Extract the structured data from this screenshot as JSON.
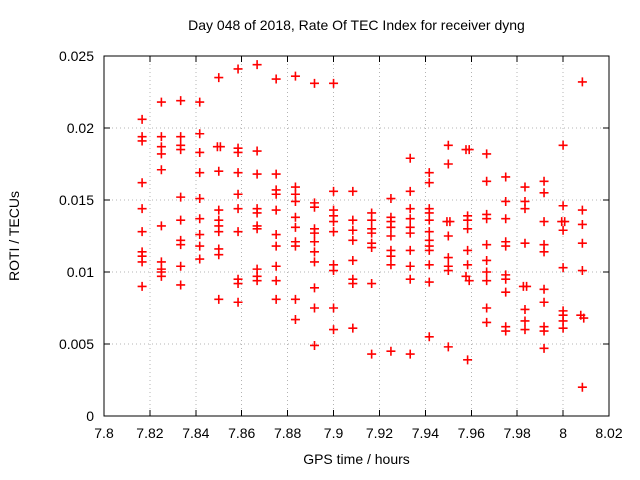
{
  "chart_data": {
    "type": "scatter",
    "title": "Day 048 of 2018, Rate Of TEC Index for receiver dyng",
    "xlabel": "GPS time / hours",
    "ylabel": "ROTI / TECUs",
    "xlim": [
      7.8,
      8.02
    ],
    "ylim": [
      0,
      0.025
    ],
    "x_ticks": [
      7.8,
      7.82,
      7.84,
      7.86,
      7.88,
      7.9,
      7.92,
      7.94,
      7.96,
      7.98,
      8,
      8.02
    ],
    "x_tick_labels": [
      "7.8",
      "7.82",
      "7.84",
      "7.86",
      "7.88",
      "7.9",
      "7.92",
      "7.94",
      "7.96",
      "7.98",
      "8",
      "8.02"
    ],
    "y_ticks": [
      0,
      0.005,
      0.01,
      0.015,
      0.02,
      0.025
    ],
    "y_tick_labels": [
      "0",
      "0.005",
      "0.01",
      "0.015",
      "0.02",
      "0.025"
    ],
    "grid": true,
    "legend": "none",
    "marker": "plus",
    "marker_color": "#ff0000",
    "grid_color": "#b4b4b4",
    "border_color": "#000000",
    "series": [
      {
        "name": "ROTI",
        "points": [
          [
            7.8166,
            0.0206
          ],
          [
            7.8166,
            0.0194
          ],
          [
            7.8166,
            0.0191
          ],
          [
            7.8166,
            0.0162
          ],
          [
            7.8166,
            0.0144
          ],
          [
            7.8166,
            0.0128
          ],
          [
            7.8166,
            0.0114
          ],
          [
            7.8166,
            0.0111
          ],
          [
            7.8166,
            0.0107
          ],
          [
            7.8166,
            0.009
          ],
          [
            7.825,
            0.0218
          ],
          [
            7.825,
            0.0194
          ],
          [
            7.825,
            0.0187
          ],
          [
            7.825,
            0.0182
          ],
          [
            7.825,
            0.0171
          ],
          [
            7.825,
            0.0132
          ],
          [
            7.825,
            0.0107
          ],
          [
            7.825,
            0.0102
          ],
          [
            7.825,
            0.01
          ],
          [
            7.825,
            0.0097
          ],
          [
            7.8334,
            0.0219
          ],
          [
            7.8334,
            0.0194
          ],
          [
            7.8334,
            0.0188
          ],
          [
            7.8334,
            0.0185
          ],
          [
            7.8334,
            0.0152
          ],
          [
            7.8334,
            0.0136
          ],
          [
            7.8334,
            0.0122
          ],
          [
            7.8334,
            0.0119
          ],
          [
            7.8334,
            0.0104
          ],
          [
            7.8334,
            0.0091
          ],
          [
            7.8417,
            0.0218
          ],
          [
            7.8417,
            0.0196
          ],
          [
            7.8417,
            0.0183
          ],
          [
            7.8417,
            0.0169
          ],
          [
            7.8417,
            0.0151
          ],
          [
            7.8417,
            0.0137
          ],
          [
            7.8417,
            0.0126
          ],
          [
            7.8417,
            0.0118
          ],
          [
            7.8417,
            0.0109
          ],
          [
            7.85,
            0.0235
          ],
          [
            7.8494,
            0.0187
          ],
          [
            7.8507,
            0.0187
          ],
          [
            7.85,
            0.017
          ],
          [
            7.85,
            0.0143
          ],
          [
            7.85,
            0.0136
          ],
          [
            7.85,
            0.0132
          ],
          [
            7.85,
            0.0128
          ],
          [
            7.85,
            0.0116
          ],
          [
            7.85,
            0.0112
          ],
          [
            7.85,
            0.0081
          ],
          [
            7.8584,
            0.0241
          ],
          [
            7.8584,
            0.0186
          ],
          [
            7.8584,
            0.0183
          ],
          [
            7.8584,
            0.0169
          ],
          [
            7.8584,
            0.0154
          ],
          [
            7.8584,
            0.0144
          ],
          [
            7.8584,
            0.0128
          ],
          [
            7.8584,
            0.0095
          ],
          [
            7.8584,
            0.0092
          ],
          [
            7.8584,
            0.0079
          ],
          [
            7.8667,
            0.0244
          ],
          [
            7.8667,
            0.0184
          ],
          [
            7.8667,
            0.0168
          ],
          [
            7.8667,
            0.0144
          ],
          [
            7.8667,
            0.0141
          ],
          [
            7.8667,
            0.0132
          ],
          [
            7.8667,
            0.013
          ],
          [
            7.8667,
            0.0102
          ],
          [
            7.8667,
            0.0097
          ],
          [
            7.8667,
            0.0094
          ],
          [
            7.875,
            0.0234
          ],
          [
            7.875,
            0.0168
          ],
          [
            7.875,
            0.0157
          ],
          [
            7.875,
            0.0154
          ],
          [
            7.875,
            0.0143
          ],
          [
            7.875,
            0.0126
          ],
          [
            7.875,
            0.0118
          ],
          [
            7.875,
            0.0104
          ],
          [
            7.875,
            0.0094
          ],
          [
            7.875,
            0.0081
          ],
          [
            7.8834,
            0.0236
          ],
          [
            7.8834,
            0.0159
          ],
          [
            7.8834,
            0.0154
          ],
          [
            7.8834,
            0.0149
          ],
          [
            7.8834,
            0.0138
          ],
          [
            7.8834,
            0.0131
          ],
          [
            7.8834,
            0.0121
          ],
          [
            7.8834,
            0.0118
          ],
          [
            7.8834,
            0.0081
          ],
          [
            7.8834,
            0.0067
          ],
          [
            7.8917,
            0.0231
          ],
          [
            7.8917,
            0.0148
          ],
          [
            7.8917,
            0.0145
          ],
          [
            7.8917,
            0.013
          ],
          [
            7.8917,
            0.0127
          ],
          [
            7.8917,
            0.0121
          ],
          [
            7.8917,
            0.0114
          ],
          [
            7.8917,
            0.0107
          ],
          [
            7.8917,
            0.0089
          ],
          [
            7.8917,
            0.0075
          ],
          [
            7.8917,
            0.0049
          ],
          [
            7.9,
            0.0231
          ],
          [
            7.9,
            0.0156
          ],
          [
            7.9,
            0.0143
          ],
          [
            7.9,
            0.0139
          ],
          [
            7.9,
            0.0135
          ],
          [
            7.9,
            0.0128
          ],
          [
            7.9,
            0.0105
          ],
          [
            7.9,
            0.0101
          ],
          [
            7.9,
            0.0075
          ],
          [
            7.9,
            0.006
          ],
          [
            7.9084,
            0.0156
          ],
          [
            7.9084,
            0.0136
          ],
          [
            7.9084,
            0.0129
          ],
          [
            7.9084,
            0.0122
          ],
          [
            7.9084,
            0.0108
          ],
          [
            7.9084,
            0.0095
          ],
          [
            7.9084,
            0.0092
          ],
          [
            7.9084,
            0.0061
          ],
          [
            7.9166,
            0.0141
          ],
          [
            7.9166,
            0.0136
          ],
          [
            7.9166,
            0.013
          ],
          [
            7.9166,
            0.0127
          ],
          [
            7.9166,
            0.012
          ],
          [
            7.9166,
            0.0117
          ],
          [
            7.9166,
            0.0092
          ],
          [
            7.9166,
            0.0043
          ],
          [
            7.925,
            0.0151
          ],
          [
            7.925,
            0.0138
          ],
          [
            7.925,
            0.0135
          ],
          [
            7.925,
            0.0131
          ],
          [
            7.925,
            0.0125
          ],
          [
            7.925,
            0.0115
          ],
          [
            7.925,
            0.0111
          ],
          [
            7.925,
            0.0105
          ],
          [
            7.925,
            0.0045
          ],
          [
            7.9334,
            0.0179
          ],
          [
            7.9334,
            0.0156
          ],
          [
            7.9334,
            0.0144
          ],
          [
            7.9334,
            0.0137
          ],
          [
            7.9334,
            0.0131
          ],
          [
            7.9334,
            0.0127
          ],
          [
            7.9334,
            0.0115
          ],
          [
            7.9334,
            0.0104
          ],
          [
            7.9334,
            0.0095
          ],
          [
            7.9334,
            0.0043
          ],
          [
            7.9417,
            0.0169
          ],
          [
            7.9417,
            0.0162
          ],
          [
            7.9417,
            0.0144
          ],
          [
            7.9417,
            0.0141
          ],
          [
            7.9417,
            0.0136
          ],
          [
            7.9417,
            0.0128
          ],
          [
            7.9417,
            0.0122
          ],
          [
            7.9417,
            0.0118
          ],
          [
            7.9417,
            0.0115
          ],
          [
            7.9417,
            0.0105
          ],
          [
            7.9417,
            0.0093
          ],
          [
            7.9417,
            0.0055
          ],
          [
            7.95,
            0.0188
          ],
          [
            7.95,
            0.0175
          ],
          [
            7.9494,
            0.0135
          ],
          [
            7.9507,
            0.0135
          ],
          [
            7.95,
            0.0125
          ],
          [
            7.95,
            0.011
          ],
          [
            7.95,
            0.0104
          ],
          [
            7.95,
            0.0101
          ],
          [
            7.95,
            0.0048
          ],
          [
            7.9577,
            0.0185
          ],
          [
            7.9591,
            0.0185
          ],
          [
            7.9584,
            0.0139
          ],
          [
            7.9584,
            0.0136
          ],
          [
            7.9584,
            0.013
          ],
          [
            7.9584,
            0.0115
          ],
          [
            7.9584,
            0.0105
          ],
          [
            7.9577,
            0.0097
          ],
          [
            7.9591,
            0.0094
          ],
          [
            7.9584,
            0.0039
          ],
          [
            7.9667,
            0.0182
          ],
          [
            7.9667,
            0.0163
          ],
          [
            7.9667,
            0.014
          ],
          [
            7.9667,
            0.0137
          ],
          [
            7.9667,
            0.0119
          ],
          [
            7.9667,
            0.0108
          ],
          [
            7.9667,
            0.01
          ],
          [
            7.9667,
            0.0094
          ],
          [
            7.9667,
            0.0075
          ],
          [
            7.9667,
            0.0065
          ],
          [
            7.975,
            0.0166
          ],
          [
            7.975,
            0.0149
          ],
          [
            7.975,
            0.0137
          ],
          [
            7.975,
            0.0121
          ],
          [
            7.975,
            0.0118
          ],
          [
            7.975,
            0.0098
          ],
          [
            7.975,
            0.0095
          ],
          [
            7.975,
            0.0086
          ],
          [
            7.975,
            0.0062
          ],
          [
            7.975,
            0.0059
          ],
          [
            7.9834,
            0.0159
          ],
          [
            7.9834,
            0.0149
          ],
          [
            7.9834,
            0.0144
          ],
          [
            7.9834,
            0.012
          ],
          [
            7.9827,
            0.009
          ],
          [
            7.9841,
            0.009
          ],
          [
            7.9834,
            0.0074
          ],
          [
            7.9834,
            0.0066
          ],
          [
            7.9834,
            0.006
          ],
          [
            7.9917,
            0.0163
          ],
          [
            7.9917,
            0.0155
          ],
          [
            7.9917,
            0.0135
          ],
          [
            7.9917,
            0.0119
          ],
          [
            7.9917,
            0.0114
          ],
          [
            7.9917,
            0.0088
          ],
          [
            7.9917,
            0.0079
          ],
          [
            7.9917,
            0.0062
          ],
          [
            7.9917,
            0.0059
          ],
          [
            7.9917,
            0.0047
          ],
          [
            8.0,
            0.0188
          ],
          [
            8.0,
            0.0146
          ],
          [
            7.9994,
            0.0135
          ],
          [
            8.0007,
            0.0135
          ],
          [
            8.0,
            0.0129
          ],
          [
            8.0,
            0.0103
          ],
          [
            8.0,
            0.0073
          ],
          [
            8.0,
            0.007
          ],
          [
            8.0,
            0.0066
          ],
          [
            8.0,
            0.0061
          ],
          [
            8.0084,
            0.0232
          ],
          [
            8.0084,
            0.0143
          ],
          [
            8.0084,
            0.0133
          ],
          [
            8.0084,
            0.012
          ],
          [
            8.0084,
            0.0101
          ],
          [
            8.0077,
            0.007
          ],
          [
            8.009,
            0.0068
          ],
          [
            8.0084,
            0.002
          ]
        ]
      }
    ]
  }
}
